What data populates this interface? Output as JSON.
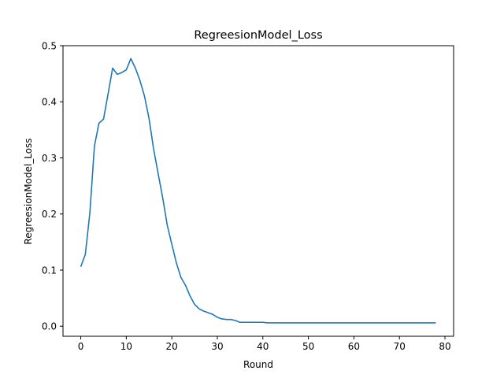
{
  "chart_data": {
    "type": "line",
    "title": "RegreesionModel_Loss",
    "xlabel": "Round",
    "ylabel": "RegreesionModel_Loss",
    "xlim": [
      -3.9,
      81.9
    ],
    "ylim": [
      -0.0179,
      0.5
    ],
    "xticks": [
      0,
      10,
      20,
      30,
      40,
      50,
      60,
      70,
      80
    ],
    "yticks": [
      0.0,
      0.1,
      0.2,
      0.3,
      0.4,
      0.5
    ],
    "xtick_labels": [
      "0",
      "10",
      "20",
      "30",
      "40",
      "50",
      "60",
      "70",
      "80"
    ],
    "ytick_labels": [
      "0.0",
      "0.1",
      "0.2",
      "0.3",
      "0.4",
      "0.5"
    ],
    "grid": false,
    "legend": "none",
    "series": [
      {
        "color": "#1f77b4",
        "x": [
          0,
          1,
          2,
          3,
          4,
          5,
          6,
          7,
          8,
          9,
          10,
          11,
          12,
          13,
          14,
          15,
          16,
          17,
          18,
          19,
          20,
          21,
          22,
          23,
          24,
          25,
          26,
          27,
          28,
          29,
          30,
          31,
          32,
          33,
          34,
          35,
          36,
          37,
          38,
          39,
          40,
          41,
          42,
          43,
          44,
          45,
          46,
          47,
          48,
          49,
          50,
          51,
          52,
          53,
          54,
          55,
          56,
          57,
          58,
          59,
          60,
          61,
          62,
          63,
          64,
          65,
          66,
          67,
          68,
          69,
          70,
          71,
          72,
          73,
          74,
          75,
          76,
          77,
          78
        ],
        "y": [
          0.106,
          0.128,
          0.202,
          0.321,
          0.362,
          0.369,
          0.414,
          0.46,
          0.449,
          0.452,
          0.457,
          0.477,
          0.46,
          0.438,
          0.41,
          0.37,
          0.316,
          0.272,
          0.229,
          0.18,
          0.146,
          0.113,
          0.087,
          0.073,
          0.054,
          0.039,
          0.031,
          0.027,
          0.024,
          0.021,
          0.016,
          0.013,
          0.012,
          0.012,
          0.01,
          0.007,
          0.007,
          0.007,
          0.007,
          0.007,
          0.007,
          0.006,
          0.006,
          0.006,
          0.006,
          0.006,
          0.006,
          0.006,
          0.006,
          0.006,
          0.006,
          0.006,
          0.006,
          0.006,
          0.006,
          0.006,
          0.006,
          0.006,
          0.006,
          0.006,
          0.006,
          0.006,
          0.006,
          0.006,
          0.006,
          0.006,
          0.006,
          0.006,
          0.006,
          0.006,
          0.006,
          0.006,
          0.006,
          0.006,
          0.006,
          0.006,
          0.006,
          0.006,
          0.006
        ]
      }
    ]
  }
}
